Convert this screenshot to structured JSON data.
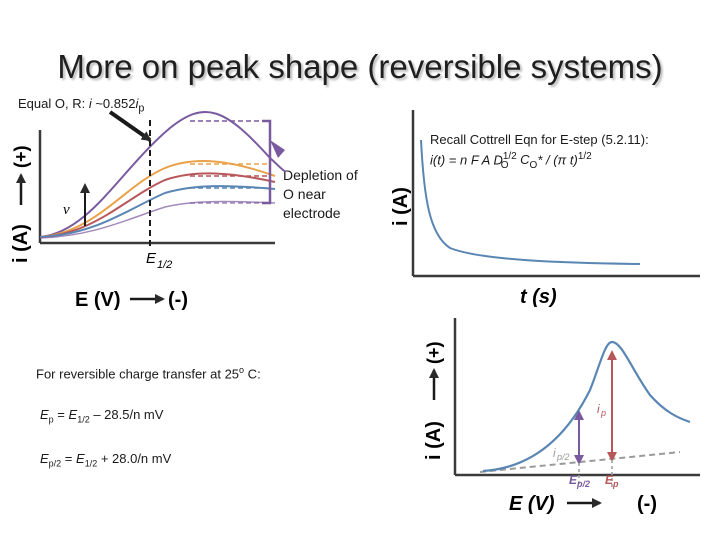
{
  "slide": {
    "title": "More on peak shape (reversible systems)"
  },
  "annotations": {
    "top_note_prefix": "Equal O, R: ",
    "top_note_i": "i",
    "top_note_mid": " ~0.852",
    "top_note_i2": "i",
    "top_note_sub": "p",
    "depletion_line1": "Depletion of",
    "depletion_line2": "O near",
    "depletion_line3": "electrode",
    "nu_symbol": "ν"
  },
  "cottrell": {
    "line1": "Recall Cottrell Eqn for E-step   (5.2.11):",
    "line2_a": "i(t) = n F A D",
    "line2_sub1": "O",
    "line2_sup1": "1/2",
    "line2_b": " C",
    "line2_sub2": "O",
    "line2_c": "* / (π t)",
    "line2_sup2": "1/2"
  },
  "reversible": {
    "heading": "For reversible charge transfer at 25",
    "heading_deg": "o",
    "heading_end": " C:",
    "eq1_a": "E",
    "eq1_sub": "p",
    "eq1_b": " = ",
    "eq1_c": "E",
    "eq1_sub2": "1/2",
    "eq1_d": " – 28.5/n mV",
    "eq2_a": "E",
    "eq2_sub": "p/2",
    "eq2_b": " = ",
    "eq2_c": "E",
    "eq2_sub2": "1/2",
    "eq2_d": " + 28.0/n mV"
  },
  "graph_left": {
    "y_label": "i (A)",
    "y_plus": "(+)",
    "x_label": "E (V)",
    "x_minus": "(-)",
    "e_half": "E",
    "e_half_sub": "1/2",
    "colors": {
      "purple": "#7a5a9e",
      "orange": "#e8a24a",
      "red": "#b8575a",
      "blue": "#5a86b4",
      "axis": "#3a3a3a"
    }
  },
  "graph_right": {
    "y_label": "i (A)",
    "x_label": "t (s)",
    "color": "#5a86b4"
  },
  "graph_bottom": {
    "y_label": "i (A)",
    "y_plus": "(+)",
    "x_label": "E (V)",
    "x_minus": "(-)",
    "ip": "i",
    "ip_sub": "p",
    "ip2": "i",
    "ip2_sub": "p/2",
    "ep2": "E",
    "ep2_sub": "p/2",
    "ep": "E",
    "ep_sub": "p",
    "colors": {
      "curve": "#5a86b4",
      "ip_arrow": "#b8575a",
      "ip2_arrow": "#7a5a9e",
      "baseline": "#9a9a9a"
    }
  }
}
